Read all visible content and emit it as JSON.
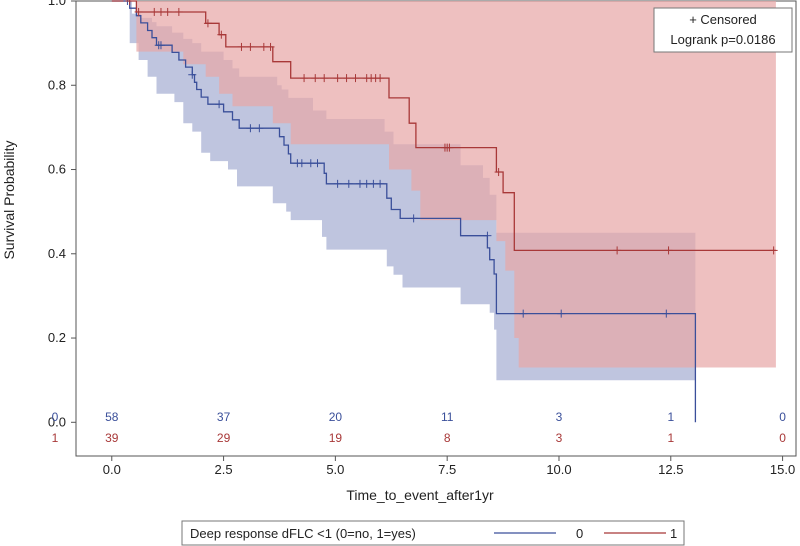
{
  "chart_data": {
    "type": "line",
    "subtype": "kaplan-meier survival with 95% confidence bands and number-at-risk table",
    "xlabel": "Time_to_event_after1yr",
    "ylabel": "Survival Probability",
    "xlim": [
      -0.8,
      15.3
    ],
    "ylim": [
      -0.08,
      1.0
    ],
    "x_ticks": [
      "0.0",
      "2.5",
      "5.0",
      "7.5",
      "10.0",
      "12.5",
      "15.0"
    ],
    "y_ticks": [
      "0.0",
      "0.2",
      "0.4",
      "0.6",
      "0.8",
      "1.0"
    ],
    "inset_box": {
      "line1": "+ Censored",
      "line2": "Logrank p=0.0186"
    },
    "legend": {
      "title": "Deep response dFLC <1 (0=no, 1=yes)",
      "placement": "bottom-center"
    },
    "series": [
      {
        "name": "0",
        "color": "#3a4f9a",
        "band_color": "#b8bfdc",
        "steps": [
          [
            0.0,
            1.0
          ],
          [
            0.4,
            0.983
          ],
          [
            0.55,
            0.965
          ],
          [
            0.65,
            0.948
          ],
          [
            0.8,
            0.93
          ],
          [
            0.9,
            0.913
          ],
          [
            1.0,
            0.895
          ],
          [
            1.35,
            0.878
          ],
          [
            1.5,
            0.86
          ],
          [
            1.65,
            0.843
          ],
          [
            1.8,
            0.825
          ],
          [
            1.85,
            0.807
          ],
          [
            1.9,
            0.79
          ],
          [
            2.0,
            0.772
          ],
          [
            2.15,
            0.755
          ],
          [
            2.5,
            0.737
          ],
          [
            2.7,
            0.718
          ],
          [
            2.85,
            0.698
          ],
          [
            3.75,
            0.678
          ],
          [
            3.85,
            0.658
          ],
          [
            3.95,
            0.637
          ],
          [
            4.0,
            0.615
          ],
          [
            4.75,
            0.591
          ],
          [
            4.8,
            0.566
          ],
          [
            6.15,
            0.532
          ],
          [
            6.25,
            0.505
          ],
          [
            6.45,
            0.484
          ],
          [
            7.8,
            0.443
          ],
          [
            8.4,
            0.414
          ],
          [
            8.45,
            0.386
          ],
          [
            8.55,
            0.352
          ],
          [
            8.6,
            0.258
          ],
          [
            13.05,
            0.0
          ]
        ],
        "lower": [
          [
            0.0,
            1.0
          ],
          [
            0.4,
            0.9
          ],
          [
            0.6,
            0.86
          ],
          [
            0.8,
            0.82
          ],
          [
            1.0,
            0.78
          ],
          [
            1.4,
            0.76
          ],
          [
            1.6,
            0.71
          ],
          [
            1.8,
            0.69
          ],
          [
            2.0,
            0.64
          ],
          [
            2.2,
            0.62
          ],
          [
            2.6,
            0.6
          ],
          [
            2.8,
            0.56
          ],
          [
            3.6,
            0.52
          ],
          [
            3.9,
            0.5
          ],
          [
            4.0,
            0.48
          ],
          [
            4.7,
            0.44
          ],
          [
            4.8,
            0.41
          ],
          [
            6.15,
            0.37
          ],
          [
            6.3,
            0.35
          ],
          [
            6.5,
            0.32
          ],
          [
            7.8,
            0.28
          ],
          [
            8.45,
            0.26
          ],
          [
            8.55,
            0.22
          ],
          [
            8.6,
            0.1
          ],
          [
            13.05,
            0.1
          ]
        ],
        "upper": [
          [
            0.0,
            1.0
          ],
          [
            0.45,
            0.97
          ],
          [
            0.65,
            0.96
          ],
          [
            0.9,
            0.95
          ],
          [
            1.0,
            0.94
          ],
          [
            1.35,
            0.925
          ],
          [
            1.6,
            0.91
          ],
          [
            1.8,
            0.9
          ],
          [
            2.0,
            0.88
          ],
          [
            2.5,
            0.86
          ],
          [
            2.7,
            0.84
          ],
          [
            2.85,
            0.82
          ],
          [
            3.7,
            0.8
          ],
          [
            3.8,
            0.79
          ],
          [
            3.95,
            0.77
          ],
          [
            4.5,
            0.74
          ],
          [
            4.8,
            0.72
          ],
          [
            6.1,
            0.69
          ],
          [
            6.3,
            0.66
          ],
          [
            7.8,
            0.61
          ],
          [
            8.3,
            0.58
          ],
          [
            8.45,
            0.54
          ],
          [
            8.6,
            0.45
          ],
          [
            13.05,
            0.45
          ]
        ],
        "censored": [
          [
            0.35,
            1.0
          ],
          [
            1.05,
            0.895
          ],
          [
            1.1,
            0.895
          ],
          [
            1.8,
            0.825
          ],
          [
            2.4,
            0.755
          ],
          [
            3.1,
            0.698
          ],
          [
            3.3,
            0.698
          ],
          [
            4.15,
            0.615
          ],
          [
            4.25,
            0.615
          ],
          [
            4.45,
            0.615
          ],
          [
            4.6,
            0.615
          ],
          [
            5.05,
            0.566
          ],
          [
            5.3,
            0.566
          ],
          [
            5.55,
            0.566
          ],
          [
            5.7,
            0.566
          ],
          [
            5.85,
            0.566
          ],
          [
            6.0,
            0.566
          ],
          [
            6.75,
            0.484
          ],
          [
            8.4,
            0.443
          ],
          [
            9.2,
            0.258
          ],
          [
            10.05,
            0.258
          ],
          [
            12.4,
            0.258
          ]
        ]
      },
      {
        "name": "1",
        "color": "#a83838",
        "band_color": "#e8a8a8",
        "steps": [
          [
            0.0,
            1.0
          ],
          [
            0.55,
            0.974
          ],
          [
            2.1,
            0.947
          ],
          [
            2.4,
            0.92
          ],
          [
            2.55,
            0.891
          ],
          [
            3.6,
            0.856
          ],
          [
            4.0,
            0.817
          ],
          [
            6.2,
            0.77
          ],
          [
            6.65,
            0.71
          ],
          [
            6.8,
            0.652
          ],
          [
            8.6,
            0.594
          ],
          [
            8.75,
            0.545
          ],
          [
            9.0,
            0.408
          ],
          [
            14.85,
            0.408
          ]
        ],
        "lower": [
          [
            0.0,
            1.0
          ],
          [
            0.55,
            0.88
          ],
          [
            1.6,
            0.85
          ],
          [
            2.1,
            0.82
          ],
          [
            2.4,
            0.78
          ],
          [
            2.7,
            0.75
          ],
          [
            3.6,
            0.71
          ],
          [
            4.0,
            0.66
          ],
          [
            6.2,
            0.6
          ],
          [
            6.7,
            0.55
          ],
          [
            6.9,
            0.48
          ],
          [
            8.6,
            0.43
          ],
          [
            8.8,
            0.36
          ],
          [
            9.0,
            0.2
          ],
          [
            9.1,
            0.13
          ],
          [
            14.85,
            0.13
          ]
        ],
        "upper": [
          [
            0.0,
            1.0
          ],
          [
            14.85,
            1.0
          ]
        ],
        "censored": [
          [
            0.4,
            1.0
          ],
          [
            0.6,
            0.974
          ],
          [
            0.95,
            0.974
          ],
          [
            1.1,
            0.974
          ],
          [
            1.25,
            0.974
          ],
          [
            1.5,
            0.974
          ],
          [
            2.15,
            0.947
          ],
          [
            2.45,
            0.92
          ],
          [
            2.9,
            0.891
          ],
          [
            3.1,
            0.891
          ],
          [
            3.4,
            0.891
          ],
          [
            3.55,
            0.891
          ],
          [
            4.3,
            0.817
          ],
          [
            4.55,
            0.817
          ],
          [
            4.75,
            0.817
          ],
          [
            5.05,
            0.817
          ],
          [
            5.25,
            0.817
          ],
          [
            5.45,
            0.817
          ],
          [
            5.7,
            0.817
          ],
          [
            5.8,
            0.817
          ],
          [
            5.9,
            0.817
          ],
          [
            6.0,
            0.817
          ],
          [
            7.45,
            0.652
          ],
          [
            7.5,
            0.652
          ],
          [
            7.55,
            0.652
          ],
          [
            8.65,
            0.594
          ],
          [
            11.3,
            0.408
          ],
          [
            12.45,
            0.408
          ],
          [
            14.8,
            0.408
          ]
        ]
      }
    ],
    "risk_table": {
      "times": [
        0.0,
        2.5,
        5.0,
        7.5,
        10.0,
        12.5,
        15.0
      ],
      "rows": [
        {
          "group": "0",
          "color": "#3a4f9a",
          "counts": [
            "58",
            "37",
            "20",
            "11",
            "3",
            "1",
            "0"
          ]
        },
        {
          "group": "1",
          "color": "#a83838",
          "counts": [
            "39",
            "29",
            "19",
            "8",
            "3",
            "1",
            "0"
          ]
        }
      ]
    }
  }
}
